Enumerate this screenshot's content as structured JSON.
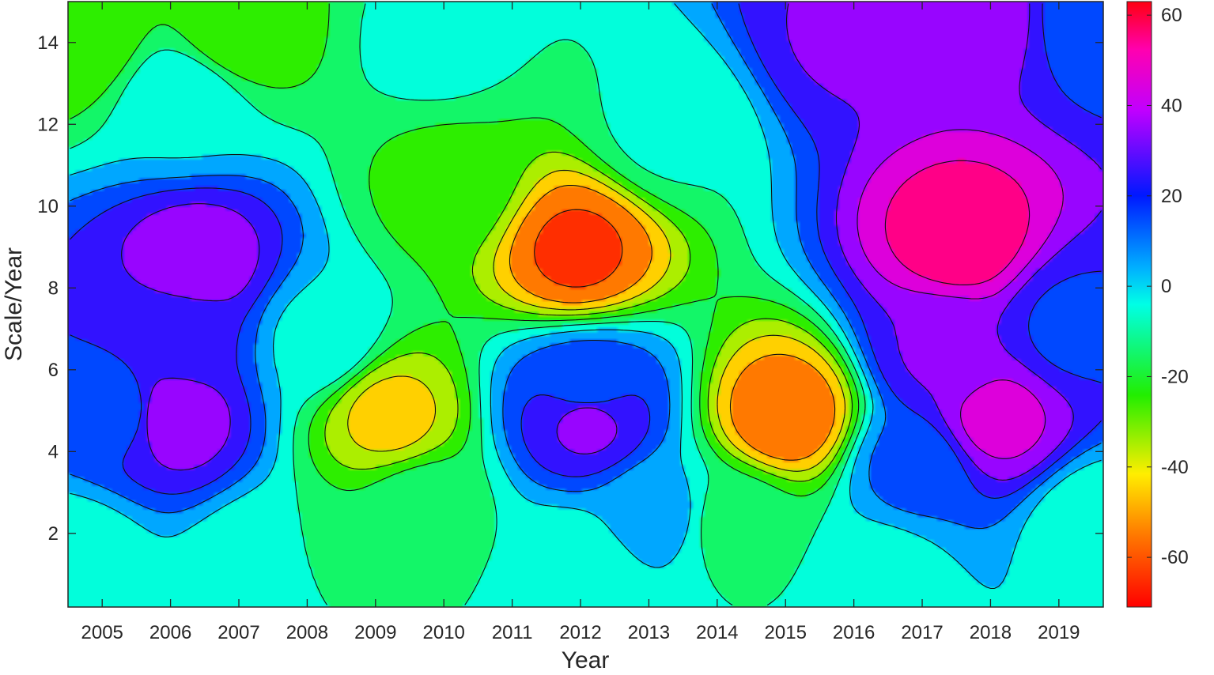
{
  "chart_data": {
    "type": "heatmap",
    "title": "",
    "xlabel": "Year",
    "ylabel": "Scale/Year",
    "x_ticks": [
      "2005",
      "2006",
      "2007",
      "2008",
      "2009",
      "2010",
      "2011",
      "2012",
      "2013",
      "2014",
      "2015",
      "2016",
      "2017",
      "2018",
      "2019"
    ],
    "y_ticks": [
      "2",
      "4",
      "6",
      "8",
      "10",
      "12",
      "14"
    ],
    "xlim": [
      2004.5,
      2019.65
    ],
    "ylim": [
      0.2,
      15
    ],
    "colorbar": {
      "ticks": [
        "-60",
        "-40",
        "-20",
        "0",
        "20",
        "40",
        "60"
      ],
      "range": [
        -71,
        63
      ],
      "colormap": "hsv-like"
    },
    "contour_lines": true,
    "features": [
      {
        "x": 2011.95,
        "y": 8.9,
        "value": -62
      },
      {
        "x": 2017.55,
        "y": 9.2,
        "value": 56
      },
      {
        "x": 2006.4,
        "y": 8.6,
        "value": 36
      },
      {
        "x": 2006.0,
        "y": 4.9,
        "value": 37
      },
      {
        "x": 2009.2,
        "y": 4.9,
        "value": -43
      },
      {
        "x": 2012.1,
        "y": 4.8,
        "value": 33
      },
      {
        "x": 2015.0,
        "y": 4.9,
        "value": -58
      },
      {
        "x": 2018.1,
        "y": 4.8,
        "value": 43
      },
      {
        "x": 2006.2,
        "y": 6.8,
        "value": 22
      },
      {
        "x": 2012.1,
        "y": 5.5,
        "value": 14
      },
      {
        "x": 2017.3,
        "y": 6.5,
        "value": 31
      },
      {
        "x": 2017.8,
        "y": 14.8,
        "value": 37
      },
      {
        "x": 2015.9,
        "y": 14.2,
        "value": 31
      },
      {
        "x": 2007.0,
        "y": 14.3,
        "value": -28
      },
      {
        "x": 2006.2,
        "y": 12.6,
        "value": -2
      },
      {
        "x": 2009.9,
        "y": 14.0,
        "value": -7
      },
      {
        "x": 2010.1,
        "y": 10.5,
        "value": -24
      },
      {
        "x": 2009.7,
        "y": 2.6,
        "value": -14
      },
      {
        "x": 2014.3,
        "y": 2.3,
        "value": -15
      },
      {
        "x": 2008.2,
        "y": 6.7,
        "value": -3
      },
      {
        "x": 2013.1,
        "y": 2.5,
        "value": 4
      },
      {
        "x": 2005.25,
        "y": 5.0,
        "value": 15
      },
      {
        "x": 2019.2,
        "y": 7.0,
        "value": 18
      },
      {
        "x": 2016.9,
        "y": 3.6,
        "value": 13
      },
      {
        "x": 2013.3,
        "y": 11.9,
        "value": -8
      },
      {
        "x": 2007.4,
        "y": 1.1,
        "value": -10
      },
      {
        "x": 2011.9,
        "y": 1.1,
        "value": -8
      },
      {
        "x": 2016.4,
        "y": 1.0,
        "value": -5
      },
      {
        "x": 2004.55,
        "y": 1.3,
        "value": -8
      },
      {
        "x": 2004.6,
        "y": 14.2,
        "value": -30
      },
      {
        "x": 2019.55,
        "y": 14.8,
        "value": 12
      },
      {
        "x": 2019.55,
        "y": 2.2,
        "value": -8
      }
    ]
  }
}
